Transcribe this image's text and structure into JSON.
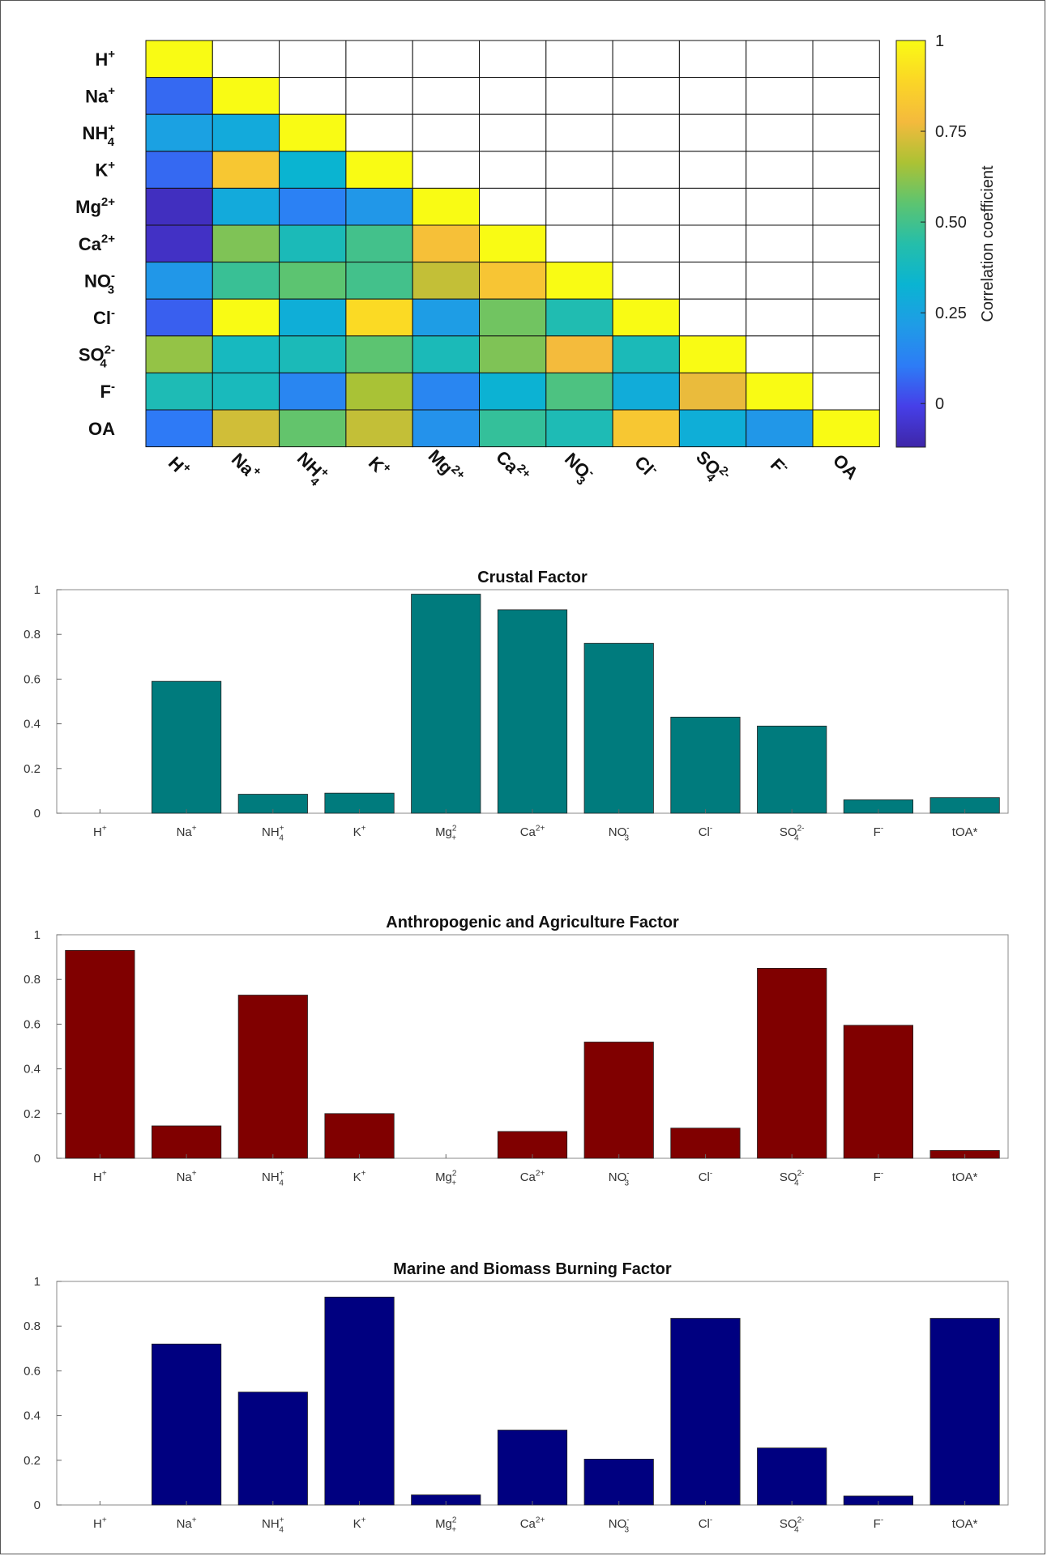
{
  "chart_data": [
    {
      "type": "heatmap",
      "title": "",
      "labels": [
        "H|+|",
        "Na|+|",
        "NH|+|4",
        "K|+|",
        "Mg|2+|",
        "Ca|2+|",
        "NO|-|3",
        "Cl|-|",
        "SO|2-|4",
        "F|-|",
        "OA"
      ],
      "x_tick_labels": [
        "H+",
        "Na +",
        "NH+4",
        "K+",
        "Mg 2+",
        "Ca 2+",
        "NO-3",
        "Cl-",
        "SO2-4",
        "F-",
        "OA"
      ],
      "colorbar": {
        "label": "Correlation coefficient",
        "ticks": [
          0,
          0.25,
          0.5,
          0.75,
          1
        ],
        "tick_labels": [
          "0",
          "0.25",
          "0.50",
          "0.75",
          "1"
        ],
        "range": [
          -0.12,
          1
        ]
      },
      "values": [
        [
          1
        ],
        [
          0.07,
          1
        ],
        [
          0.24,
          0.28,
          1
        ],
        [
          0.07,
          0.83,
          0.33,
          1
        ],
        [
          -0.08,
          0.28,
          0.12,
          0.2,
          1
        ],
        [
          -0.07,
          0.6,
          0.4,
          0.5,
          0.8,
          1
        ],
        [
          0.2,
          0.48,
          0.55,
          0.5,
          0.7,
          0.82,
          1
        ],
        [
          0.05,
          1,
          0.3,
          0.9,
          0.22,
          0.58,
          0.42,
          1
        ],
        [
          0.63,
          0.38,
          0.4,
          0.55,
          0.4,
          0.6,
          0.78,
          0.4,
          1
        ],
        [
          0.41,
          0.39,
          0.14,
          0.66,
          0.14,
          0.32,
          0.52,
          0.29,
          0.76,
          1
        ],
        [
          0.1,
          0.72,
          0.56,
          0.7,
          0.18,
          0.47,
          0.41,
          0.83,
          0.3,
          0.2,
          1
        ]
      ]
    },
    {
      "type": "bar",
      "title": "Crustal Factor",
      "categories": [
        "H|+|",
        "Na|+|",
        "NH|+|4",
        "K|+|",
        "Mg|2|+",
        "Ca|2+|",
        "NO|-|3",
        "Cl|-|",
        "SO|2-|4",
        "F|-|",
        "tOA*"
      ],
      "values": [
        0,
        0.59,
        0.085,
        0.09,
        0.98,
        0.91,
        0.76,
        0.43,
        0.39,
        0.06,
        0.07
      ],
      "ylim": [
        0,
        1
      ],
      "yticks": [
        "0",
        "0.2",
        "0.4",
        "0.6",
        "0.8",
        "1"
      ],
      "color": "#007b7d"
    },
    {
      "type": "bar",
      "title": "Anthropogenic and Agriculture Factor",
      "categories": [
        "H|+|",
        "Na|+|",
        "NH|+|4",
        "K|+|",
        "Mg|2|+",
        "Ca|2+|",
        "NO|-|3",
        "Cl|-|",
        "SO|2-|4",
        "F|-|",
        "tOA*"
      ],
      "values": [
        0.93,
        0.145,
        0.73,
        0.2,
        0,
        0.12,
        0.52,
        0.135,
        0.85,
        0.595,
        0.035
      ],
      "ylim": [
        0,
        1
      ],
      "yticks": [
        "0",
        "0.2",
        "0.4",
        "0.6",
        "0.8",
        "1"
      ],
      "color": "#800000"
    },
    {
      "type": "bar",
      "title": "Marine and Biomass Burning Factor",
      "categories": [
        "H|+|",
        "Na|+|",
        "NH|+|4",
        "K|+|",
        "Mg|2|+",
        "Ca|2+|",
        "NO|-|3",
        "Cl|-|",
        "SO|2-|4",
        "F|-|",
        "tOA*"
      ],
      "values": [
        0,
        0.72,
        0.505,
        0.93,
        0.045,
        0.335,
        0.205,
        0.835,
        0.255,
        0.04,
        0.835
      ],
      "ylim": [
        0,
        1
      ],
      "yticks": [
        "0",
        "0.2",
        "0.4",
        "0.6",
        "0.8",
        "1"
      ],
      "color": "#000080"
    }
  ]
}
